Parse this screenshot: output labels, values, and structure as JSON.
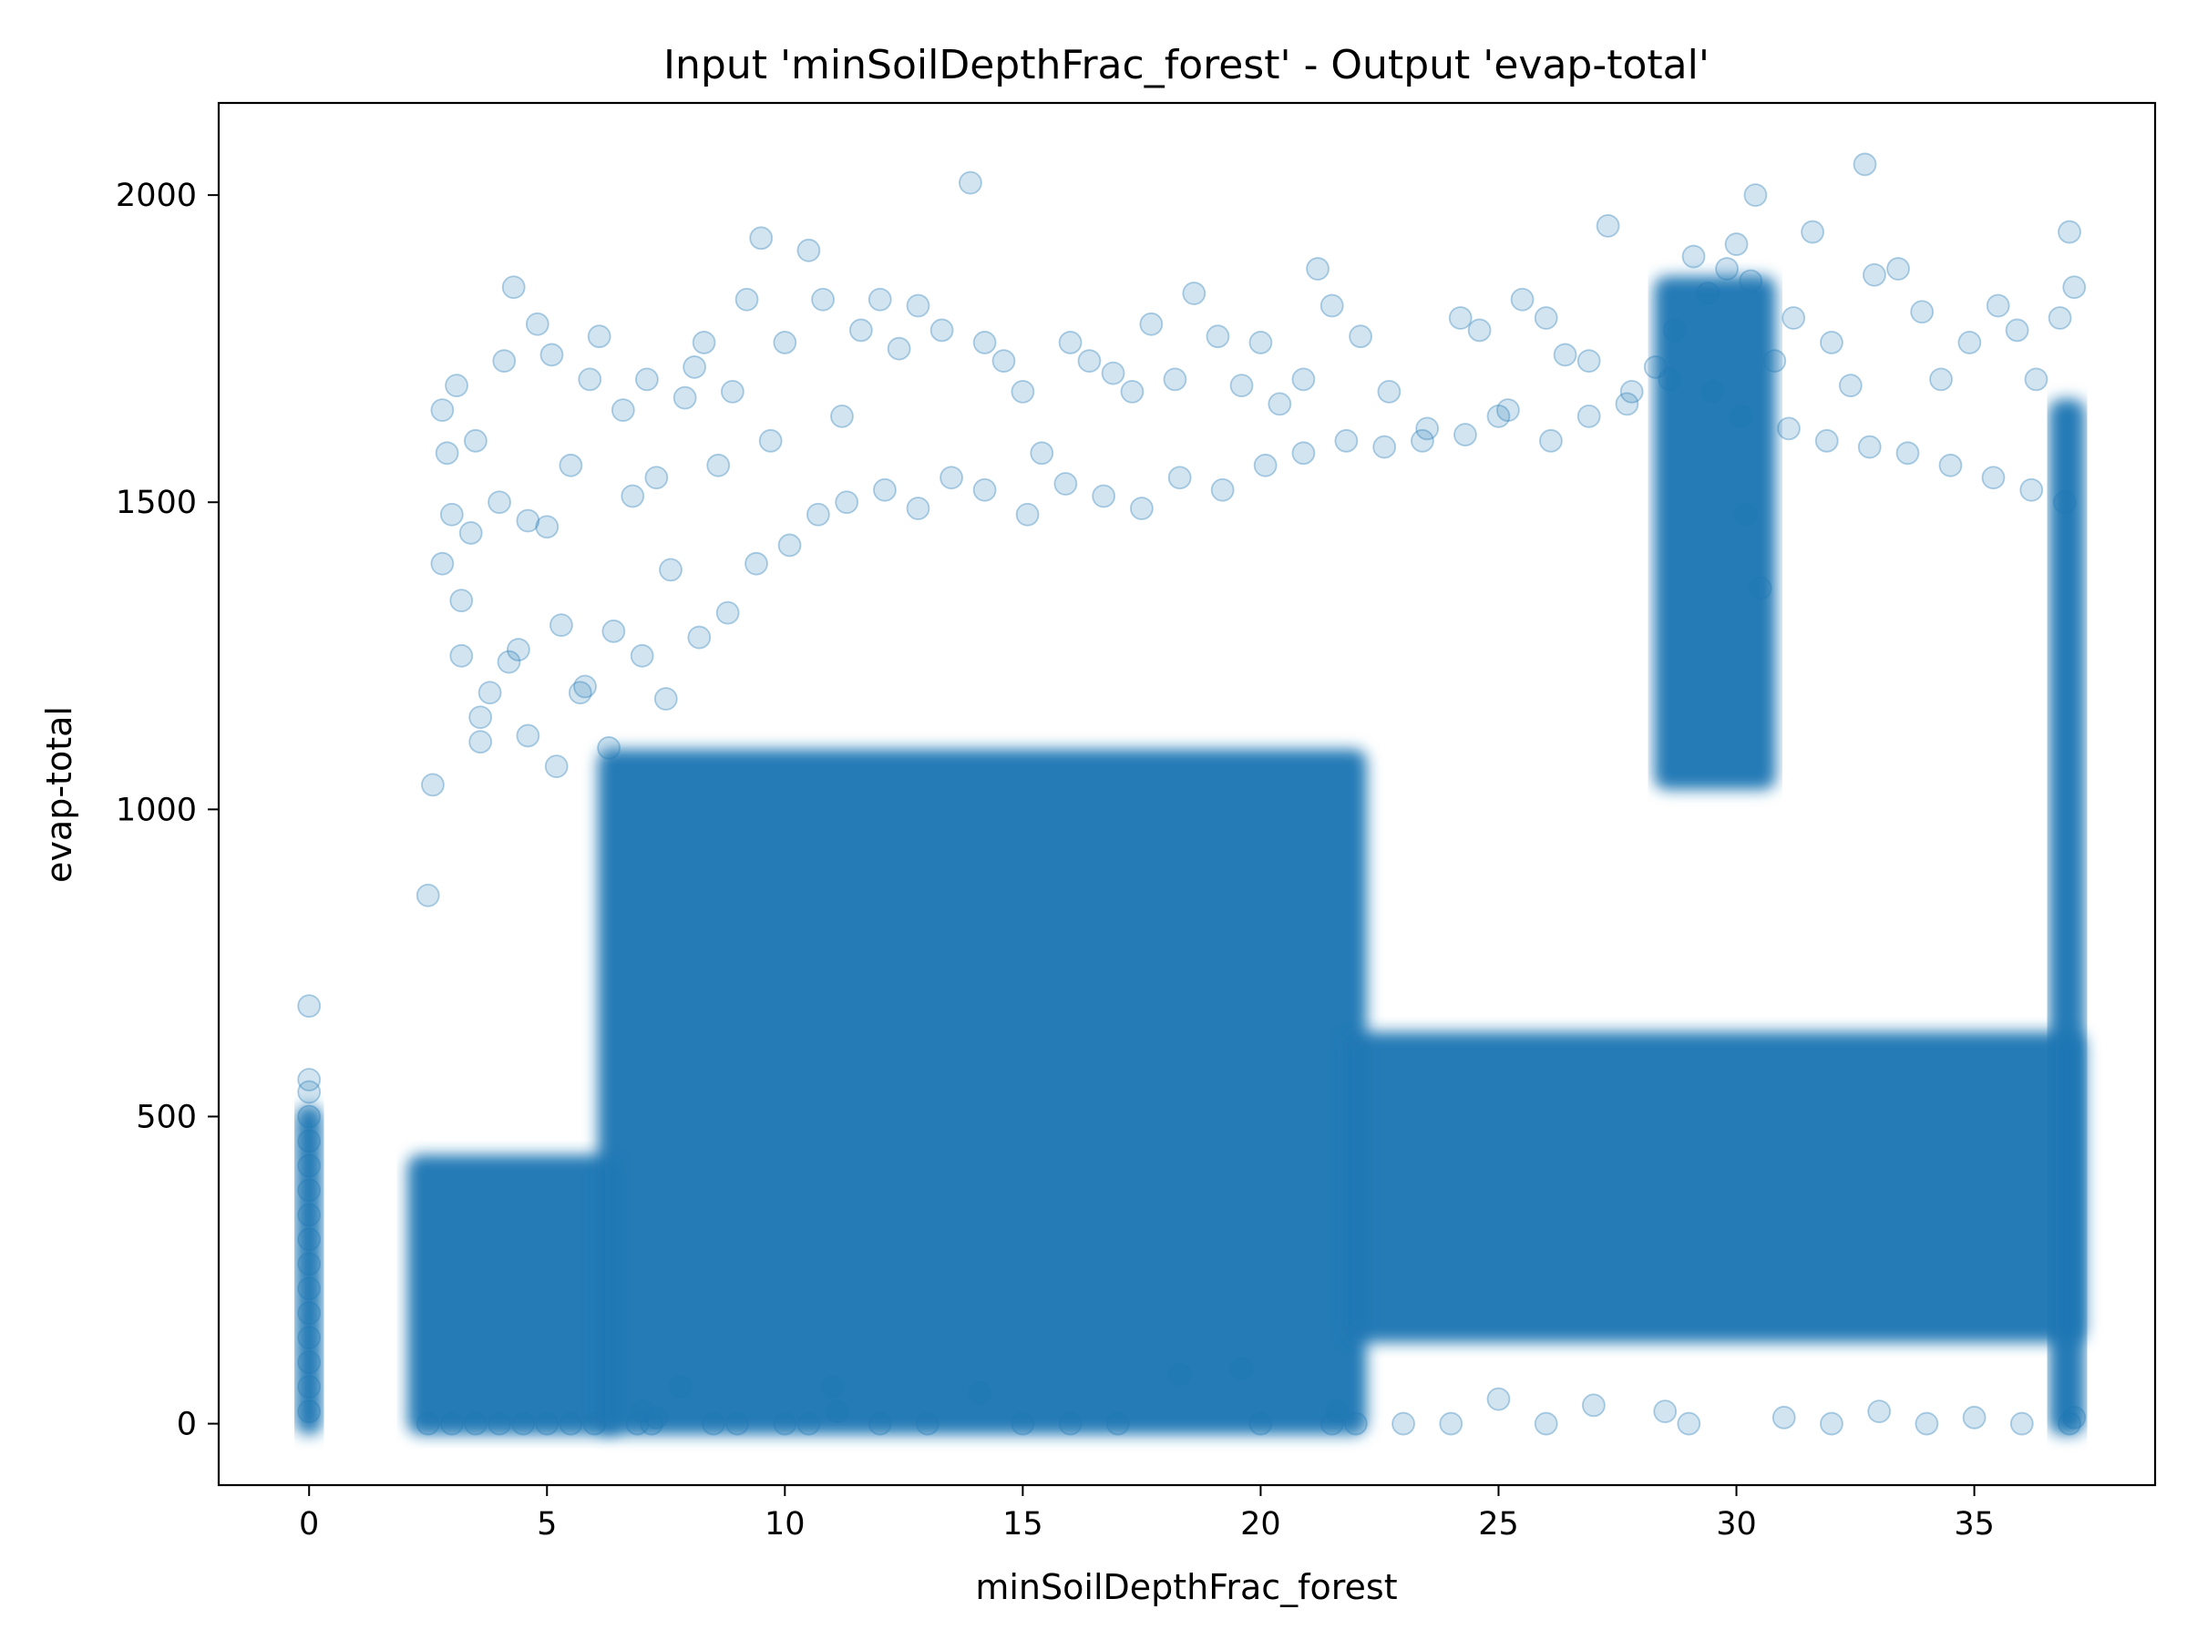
{
  "colors": {
    "marker": "#1f77b4",
    "axes": "#000000",
    "background": "#ffffff"
  },
  "chart_data": {
    "type": "scatter",
    "title": "Input 'minSoilDepthFrac_forest' - Output 'evap-total'",
    "xlabel": "minSoilDepthFrac_forest",
    "ylabel": "evap-total",
    "xlim": [
      -1.9,
      38.8
    ],
    "ylim": [
      -100,
      2150
    ],
    "xticks": [
      0,
      5,
      10,
      15,
      20,
      25,
      30,
      35
    ],
    "xtick_labels": [
      "0",
      "5",
      "10",
      "15",
      "20",
      "25",
      "30",
      "35"
    ],
    "yticks": [
      0,
      500,
      1000,
      1500,
      2000
    ],
    "ytick_labels": [
      "0",
      "500",
      "1000",
      "1500",
      "2000"
    ],
    "grid": false,
    "marker_alpha": 0.2,
    "series": [
      {
        "points": [
          [
            0,
            680
          ],
          [
            0,
            560
          ],
          [
            0,
            540
          ],
          [
            0,
            500
          ],
          [
            0,
            460
          ],
          [
            0,
            420
          ],
          [
            0,
            380
          ],
          [
            0,
            340
          ],
          [
            0,
            300
          ],
          [
            0,
            260
          ],
          [
            0,
            220
          ],
          [
            0,
            180
          ],
          [
            0,
            140
          ],
          [
            0,
            100
          ],
          [
            0,
            60
          ],
          [
            0,
            20
          ],
          [
            2.5,
            860
          ],
          [
            2.6,
            1040
          ],
          [
            2.8,
            1650
          ],
          [
            2.9,
            1580
          ],
          [
            3.0,
            1480
          ],
          [
            3.1,
            1690
          ],
          [
            3.2,
            1340
          ],
          [
            3.4,
            1450
          ],
          [
            3.5,
            1600
          ],
          [
            3.6,
            1110
          ],
          [
            3.8,
            1190
          ],
          [
            4.0,
            1500
          ],
          [
            4.1,
            1730
          ],
          [
            4.3,
            1850
          ],
          [
            4.4,
            1260
          ],
          [
            4.6,
            1470
          ],
          [
            4.8,
            1790
          ],
          [
            5.0,
            1460
          ],
          [
            5.1,
            1740
          ],
          [
            5.3,
            1300
          ],
          [
            5.5,
            1560
          ],
          [
            5.7,
            1190
          ],
          [
            5.9,
            1700
          ],
          [
            6.1,
            1770
          ],
          [
            6.4,
            1290
          ],
          [
            6.6,
            1650
          ],
          [
            6.8,
            1510
          ],
          [
            7.1,
            1700
          ],
          [
            7.3,
            1540
          ],
          [
            7.6,
            1390
          ],
          [
            7.9,
            1670
          ],
          [
            8.1,
            1720
          ],
          [
            8.3,
            1760
          ],
          [
            8.6,
            1560
          ],
          [
            8.9,
            1680
          ],
          [
            9.2,
            1830
          ],
          [
            9.5,
            1930
          ],
          [
            9.7,
            1600
          ],
          [
            10.0,
            1760
          ],
          [
            10.5,
            1910
          ],
          [
            10.8,
            1830
          ],
          [
            11.2,
            1640
          ],
          [
            11.6,
            1780
          ],
          [
            12.0,
            1830
          ],
          [
            12.4,
            1750
          ],
          [
            12.8,
            1820
          ],
          [
            13.3,
            1780
          ],
          [
            13.9,
            2020
          ],
          [
            14.2,
            1760
          ],
          [
            14.6,
            1730
          ],
          [
            15.0,
            1680
          ],
          [
            15.4,
            1580
          ],
          [
            16.0,
            1760
          ],
          [
            16.4,
            1730
          ],
          [
            16.9,
            1710
          ],
          [
            17.3,
            1680
          ],
          [
            17.7,
            1790
          ],
          [
            18.2,
            1700
          ],
          [
            18.6,
            1840
          ],
          [
            19.1,
            1770
          ],
          [
            19.6,
            1690
          ],
          [
            20.0,
            1760
          ],
          [
            20.4,
            1660
          ],
          [
            20.9,
            1700
          ],
          [
            21.2,
            1880
          ],
          [
            21.5,
            1820
          ],
          [
            22.1,
            1770
          ],
          [
            22.7,
            1680
          ],
          [
            23.4,
            1600
          ],
          [
            24.2,
            1800
          ],
          [
            24.6,
            1780
          ],
          [
            25.0,
            1640
          ],
          [
            25.5,
            1830
          ],
          [
            26.0,
            1800
          ],
          [
            26.4,
            1740
          ],
          [
            26.9,
            1730
          ],
          [
            27.3,
            1950
          ],
          [
            27.8,
            1680
          ],
          [
            28.3,
            1720
          ],
          [
            28.7,
            1780
          ],
          [
            29.1,
            1900
          ],
          [
            29.4,
            1840
          ],
          [
            29.8,
            1880
          ],
          [
            30.0,
            1920
          ],
          [
            30.1,
            1640
          ],
          [
            30.2,
            1480
          ],
          [
            30.3,
            1860
          ],
          [
            30.4,
            2000
          ],
          [
            30.5,
            1360
          ],
          [
            30.8,
            1730
          ],
          [
            31.2,
            1800
          ],
          [
            31.6,
            1940
          ],
          [
            32.0,
            1760
          ],
          [
            32.4,
            1690
          ],
          [
            32.7,
            2050
          ],
          [
            32.9,
            1870
          ],
          [
            33.4,
            1880
          ],
          [
            33.9,
            1810
          ],
          [
            34.3,
            1700
          ],
          [
            34.9,
            1760
          ],
          [
            35.5,
            1820
          ],
          [
            35.9,
            1780
          ],
          [
            36.3,
            1700
          ],
          [
            36.8,
            1800
          ],
          [
            37.0,
            1940
          ],
          [
            37.1,
            1850
          ],
          [
            2.8,
            1400
          ],
          [
            3.2,
            1250
          ],
          [
            3.6,
            1150
          ],
          [
            4.2,
            1240
          ],
          [
            4.6,
            1120
          ],
          [
            5.2,
            1070
          ],
          [
            5.8,
            1200
          ],
          [
            6.3,
            1100
          ],
          [
            7.0,
            1250
          ],
          [
            7.5,
            1180
          ],
          [
            8.2,
            1280
          ],
          [
            8.8,
            1320
          ],
          [
            9.4,
            1400
          ],
          [
            10.1,
            1430
          ],
          [
            10.7,
            1480
          ],
          [
            11.3,
            1500
          ],
          [
            12.1,
            1520
          ],
          [
            12.8,
            1490
          ],
          [
            13.5,
            1540
          ],
          [
            14.2,
            1520
          ],
          [
            15.1,
            1480
          ],
          [
            15.9,
            1530
          ],
          [
            16.7,
            1510
          ],
          [
            17.5,
            1490
          ],
          [
            18.3,
            1540
          ],
          [
            19.2,
            1520
          ],
          [
            20.1,
            1560
          ],
          [
            20.9,
            1580
          ],
          [
            21.8,
            1600
          ],
          [
            22.6,
            1590
          ],
          [
            23.5,
            1620
          ],
          [
            24.3,
            1610
          ],
          [
            25.2,
            1650
          ],
          [
            26.1,
            1600
          ],
          [
            26.9,
            1640
          ],
          [
            27.7,
            1660
          ],
          [
            28.6,
            1700
          ],
          [
            29.5,
            1680
          ],
          [
            31.1,
            1620
          ],
          [
            31.9,
            1600
          ],
          [
            32.8,
            1590
          ],
          [
            33.6,
            1580
          ],
          [
            34.5,
            1560
          ],
          [
            35.4,
            1540
          ],
          [
            36.2,
            1520
          ],
          [
            36.9,
            1500
          ],
          [
            6.9,
            0
          ],
          [
            7.0,
            20
          ],
          [
            7.2,
            0
          ],
          [
            7.3,
            10
          ],
          [
            7.8,
            60
          ],
          [
            11.0,
            60
          ],
          [
            11.1,
            20
          ],
          [
            14.1,
            50
          ],
          [
            18.3,
            80
          ],
          [
            19.6,
            90
          ],
          [
            21.5,
            0
          ],
          [
            21.6,
            20
          ],
          [
            25.0,
            40
          ],
          [
            27.0,
            30
          ],
          [
            28.5,
            20
          ],
          [
            31.0,
            10
          ],
          [
            33.0,
            20
          ],
          [
            35.0,
            10
          ],
          [
            37.0,
            0
          ],
          [
            37.1,
            10
          ],
          [
            2.5,
            0
          ],
          [
            3.0,
            0
          ],
          [
            3.5,
            0
          ],
          [
            4.0,
            0
          ],
          [
            4.5,
            0
          ],
          [
            5.0,
            0
          ],
          [
            5.5,
            0
          ],
          [
            6.0,
            0
          ],
          [
            8.5,
            0
          ],
          [
            9.0,
            0
          ],
          [
            10.0,
            0
          ],
          [
            10.5,
            0
          ],
          [
            12.0,
            0
          ],
          [
            13.0,
            0
          ],
          [
            15.0,
            0
          ],
          [
            16.0,
            0
          ],
          [
            17.0,
            0
          ],
          [
            20.0,
            0
          ],
          [
            22.0,
            0
          ],
          [
            23.0,
            0
          ],
          [
            24.0,
            0
          ],
          [
            26.0,
            0
          ],
          [
            29.0,
            0
          ],
          [
            32.0,
            0
          ],
          [
            34.0,
            0
          ],
          [
            36.0,
            0
          ]
        ]
      }
    ],
    "dense_regions": [
      {
        "x": [
          -0.05,
          0.05
        ],
        "y": [
          0,
          500
        ]
      },
      {
        "x": [
          2.3,
          6.3
        ],
        "y": [
          0,
          420
        ]
      },
      {
        "x": [
          6.3,
          22.0
        ],
        "y": [
          0,
          1080
        ]
      },
      {
        "x": [
          22.0,
          37.1
        ],
        "y": [
          150,
          620
        ]
      },
      {
        "x": [
          28.5,
          30.6
        ],
        "y": [
          1050,
          1850
        ]
      },
      {
        "x": [
          36.8,
          37.1
        ],
        "y": [
          0,
          1650
        ]
      }
    ]
  }
}
